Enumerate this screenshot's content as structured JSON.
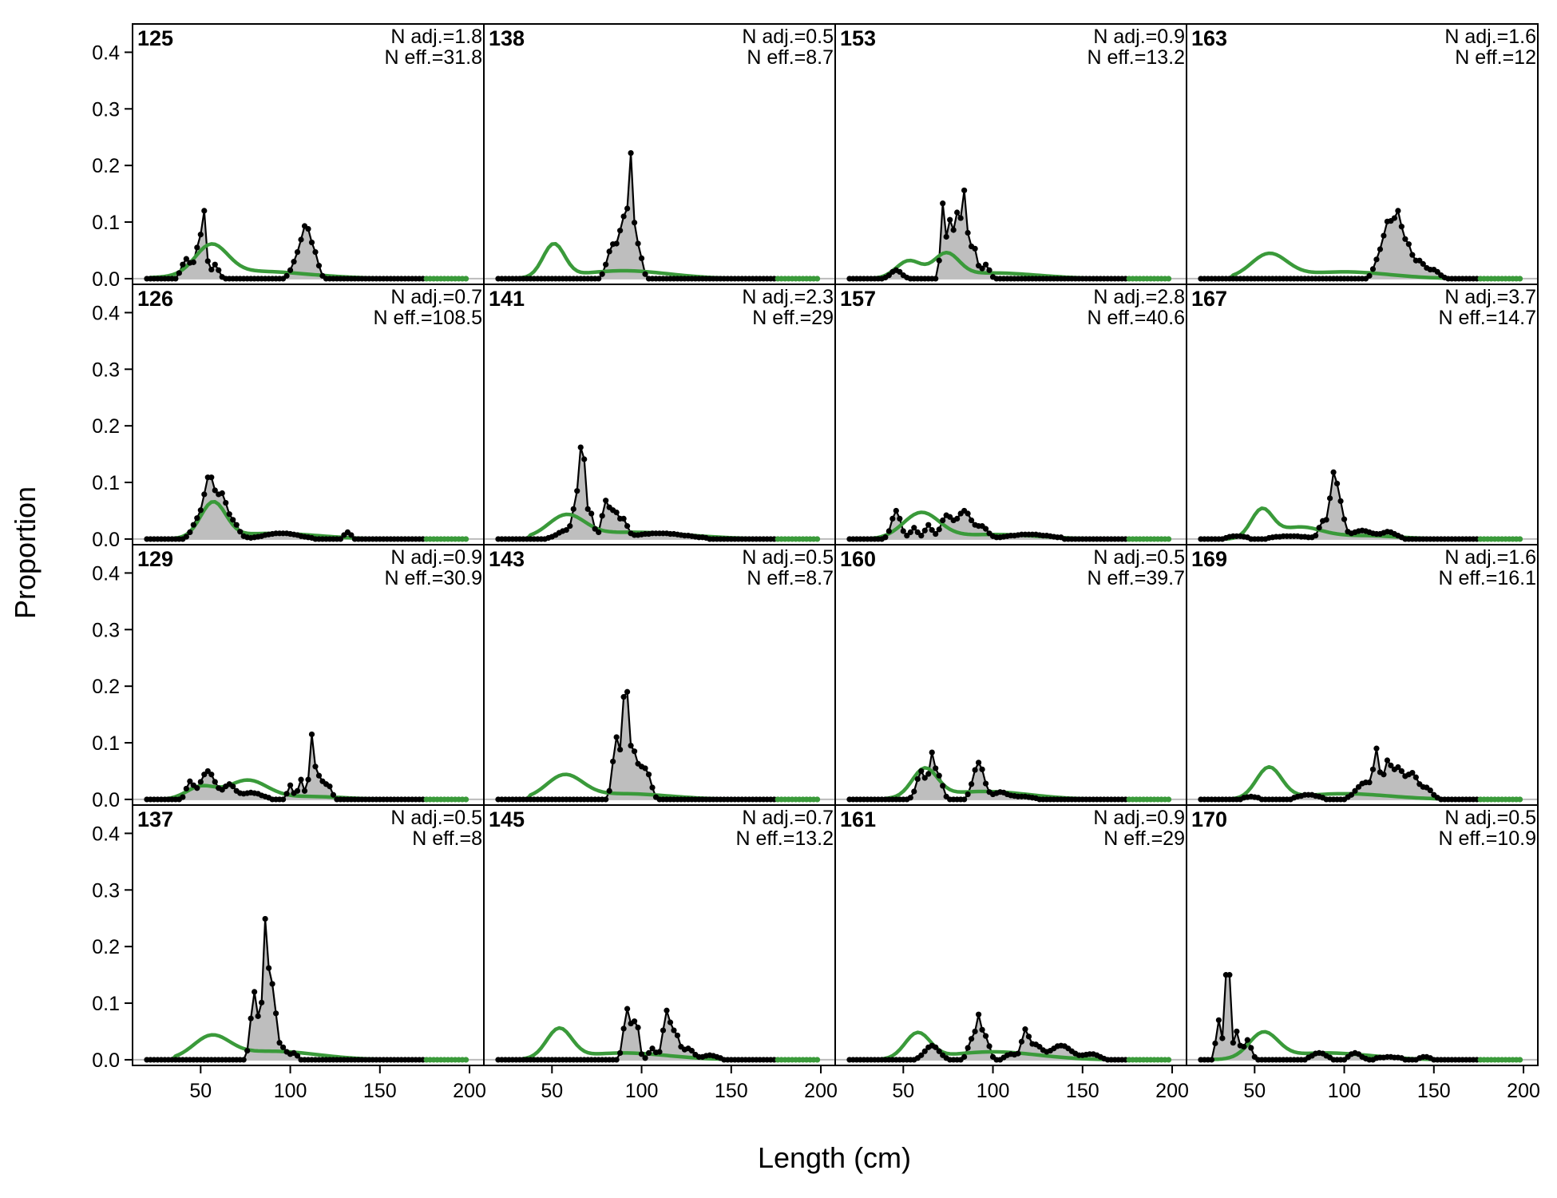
{
  "chart_data": {
    "type": "line",
    "xlabel": "Length (cm)",
    "ylabel": "Proportion",
    "xlim": [
      12,
      208
    ],
    "ylim": [
      -0.01,
      0.45
    ],
    "x_ticks": [
      50,
      100,
      150,
      200
    ],
    "y_ticks": [
      0.0,
      0.1,
      0.2,
      0.3,
      0.4
    ],
    "y_tick_labels": [
      "0.0",
      "0.1",
      "0.2",
      "0.3",
      "0.4"
    ],
    "grid": false,
    "colors": {
      "observed_fill": "#bebebe",
      "observed_line": "#000000",
      "expected_line": "#3a9a3a",
      "zero_line": "#bbbbbb",
      "frame": "#000000"
    },
    "bin_start": 20,
    "bin_end": 198,
    "bin_width": 2,
    "panels": [
      {
        "label": "125",
        "n_adj": "N adj.=1.8",
        "n_eff": "N eff.=31.8",
        "obs_peaks": [
          [
            42,
            0.035,
            2.5
          ],
          [
            49,
            0.06,
            2
          ],
          [
            52,
            0.1,
            1.2
          ],
          [
            58,
            0.025,
            2
          ],
          [
            104,
            0.035,
            3
          ],
          [
            109,
            0.085,
            2.5
          ],
          [
            114,
            0.035,
            2
          ]
        ],
        "exp_peaks": [
          [
            56,
            0.052,
            9
          ],
          [
            80,
            0.013,
            30
          ]
        ]
      },
      {
        "label": "126",
        "n_adj": "N adj.=0.7",
        "n_eff": "N eff.=108.5",
        "obs_peaks": [
          [
            48,
            0.03,
            3
          ],
          [
            55,
            0.11,
            3
          ],
          [
            62,
            0.07,
            2.5
          ],
          [
            68,
            0.03,
            3
          ],
          [
            95,
            0.01,
            10
          ],
          [
            132,
            0.012,
            2
          ]
        ],
        "exp_peaks": [
          [
            57,
            0.062,
            7
          ],
          [
            90,
            0.01,
            25
          ]
        ]
      },
      {
        "label": "129",
        "n_adj": "N adj.=0.9",
        "n_eff": "N eff.=30.9",
        "obs_peaks": [
          [
            44,
            0.03,
            2
          ],
          [
            54,
            0.05,
            4
          ],
          [
            66,
            0.025,
            3
          ],
          [
            78,
            0.012,
            6
          ],
          [
            100,
            0.025,
            1.5
          ],
          [
            106,
            0.035,
            1.5
          ],
          [
            112,
            0.11,
            1.3
          ],
          [
            116,
            0.04,
            2
          ],
          [
            121,
            0.025,
            2
          ]
        ],
        "exp_peaks": [
          [
            50,
            0.022,
            8
          ],
          [
            76,
            0.033,
            11
          ],
          [
            110,
            0.005,
            20
          ]
        ]
      },
      {
        "label": "137",
        "n_adj": "N adj.=0.5",
        "n_eff": "N eff.=8",
        "obs_peaks": [
          [
            80,
            0.12,
            2
          ],
          [
            86,
            0.23,
            1.4
          ],
          [
            90,
            0.13,
            2
          ],
          [
            96,
            0.02,
            2
          ],
          [
            102,
            0.012,
            2
          ]
        ],
        "exp_peaks": [
          [
            56,
            0.038,
            10
          ],
          [
            90,
            0.015,
            25
          ]
        ]
      },
      {
        "label": "138",
        "n_adj": "N adj.=0.5",
        "n_eff": "N eff.=8.7",
        "obs_peaks": [
          [
            84,
            0.06,
            3
          ],
          [
            90,
            0.1,
            2
          ],
          [
            94,
            0.2,
            1.3
          ],
          [
            98,
            0.06,
            2
          ]
        ],
        "exp_peaks": [
          [
            51,
            0.058,
            6
          ],
          [
            90,
            0.014,
            25
          ]
        ]
      },
      {
        "label": "141",
        "n_adj": "N adj.=2.3",
        "n_eff": "N eff.=29",
        "obs_peaks": [
          [
            58,
            0.015,
            5
          ],
          [
            64,
            0.07,
            2
          ],
          [
            67,
            0.16,
            1.2
          ],
          [
            71,
            0.05,
            2
          ],
          [
            80,
            0.065,
            2
          ],
          [
            85,
            0.045,
            2
          ],
          [
            90,
            0.03,
            2
          ],
          [
            110,
            0.01,
            15
          ]
        ],
        "exp_peaks": [
          [
            58,
            0.038,
            10
          ],
          [
            95,
            0.012,
            30
          ]
        ]
      },
      {
        "label": "143",
        "n_adj": "N adj.=0.5",
        "n_eff": "N eff.=8.7",
        "obs_peaks": [
          [
            86,
            0.11,
            2
          ],
          [
            91,
            0.21,
            1.4
          ],
          [
            95,
            0.08,
            2
          ],
          [
            100,
            0.05,
            2.5
          ],
          [
            104,
            0.03,
            2
          ]
        ],
        "exp_peaks": [
          [
            57,
            0.04,
            10
          ],
          [
            90,
            0.01,
            25
          ]
        ]
      },
      {
        "label": "145",
        "n_adj": "N adj.=0.7",
        "n_eff": "N eff.=13.2",
        "obs_peaks": [
          [
            92,
            0.09,
            2
          ],
          [
            97,
            0.07,
            1.5
          ],
          [
            106,
            0.02,
            2
          ],
          [
            114,
            0.085,
            2
          ],
          [
            119,
            0.045,
            2
          ],
          [
            126,
            0.02,
            3
          ],
          [
            138,
            0.008,
            4
          ]
        ],
        "exp_peaks": [
          [
            54,
            0.052,
            7
          ],
          [
            90,
            0.012,
            25
          ]
        ]
      },
      {
        "label": "153",
        "n_adj": "N adj.=0.9",
        "n_eff": "N eff.=13.2",
        "obs_peaks": [
          [
            46,
            0.015,
            3
          ],
          [
            72,
            0.13,
            1.2
          ],
          [
            76,
            0.1,
            1.5
          ],
          [
            80,
            0.11,
            1.5
          ],
          [
            84,
            0.15,
            1.5
          ],
          [
            89,
            0.06,
            2
          ],
          [
            96,
            0.025,
            2
          ]
        ],
        "exp_peaks": [
          [
            53,
            0.03,
            7
          ],
          [
            74,
            0.04,
            7
          ],
          [
            100,
            0.01,
            25
          ]
        ]
      },
      {
        "label": "157",
        "n_adj": "N adj.=2.8",
        "n_eff": "N eff.=40.6",
        "obs_peaks": [
          [
            46,
            0.05,
            2.5
          ],
          [
            56,
            0.02,
            2
          ],
          [
            64,
            0.025,
            2
          ],
          [
            74,
            0.04,
            3
          ],
          [
            84,
            0.05,
            4
          ],
          [
            94,
            0.02,
            3
          ],
          [
            120,
            0.008,
            12
          ]
        ],
        "exp_peaks": [
          [
            60,
            0.045,
            10
          ],
          [
            100,
            0.008,
            25
          ]
        ]
      },
      {
        "label": "160",
        "n_adj": "N adj.=0.5",
        "n_eff": "N eff.=39.7",
        "obs_peaks": [
          [
            60,
            0.05,
            2.5
          ],
          [
            66,
            0.075,
            1.5
          ],
          [
            70,
            0.04,
            2
          ],
          [
            92,
            0.065,
            3
          ],
          [
            104,
            0.012,
            4
          ],
          [
            116,
            0.005,
            6
          ]
        ],
        "exp_peaks": [
          [
            62,
            0.05,
            7
          ],
          [
            95,
            0.014,
            25
          ]
        ]
      },
      {
        "label": "161",
        "n_adj": "N adj.=0.9",
        "n_eff": "N eff.=29",
        "obs_peaks": [
          [
            66,
            0.025,
            4
          ],
          [
            88,
            0.035,
            2
          ],
          [
            92,
            0.07,
            1.5
          ],
          [
            96,
            0.04,
            2
          ],
          [
            110,
            0.01,
            3
          ],
          [
            118,
            0.05,
            2
          ],
          [
            124,
            0.025,
            3
          ],
          [
            138,
            0.025,
            6
          ],
          [
            155,
            0.01,
            4
          ]
        ],
        "exp_peaks": [
          [
            58,
            0.045,
            7
          ],
          [
            100,
            0.014,
            25
          ]
        ]
      },
      {
        "label": "163",
        "n_adj": "N adj.=1.6",
        "n_eff": "N eff.=12",
        "obs_peaks": [
          [
            120,
            0.04,
            3
          ],
          [
            125,
            0.09,
            2.5
          ],
          [
            130,
            0.1,
            2
          ],
          [
            135,
            0.06,
            2.5
          ],
          [
            142,
            0.03,
            3
          ],
          [
            150,
            0.015,
            3
          ]
        ],
        "exp_peaks": [
          [
            58,
            0.042,
            10
          ],
          [
            100,
            0.012,
            25
          ]
        ]
      },
      {
        "label": "167",
        "n_adj": "N adj.=3.7",
        "n_eff": "N eff.=14.7",
        "obs_peaks": [
          [
            40,
            0.005,
            5
          ],
          [
            70,
            0.005,
            10
          ],
          [
            88,
            0.03,
            2
          ],
          [
            94,
            0.11,
            2
          ],
          [
            98,
            0.05,
            2
          ],
          [
            110,
            0.015,
            6
          ],
          [
            125,
            0.012,
            4
          ]
        ],
        "exp_peaks": [
          [
            54,
            0.05,
            6
          ],
          [
            75,
            0.02,
            12
          ],
          [
            110,
            0.006,
            20
          ]
        ]
      },
      {
        "label": "169",
        "n_adj": "N adj.=1.6",
        "n_eff": "N eff.=16.1",
        "obs_peaks": [
          [
            48,
            0.005,
            4
          ],
          [
            80,
            0.008,
            6
          ],
          [
            112,
            0.03,
            5
          ],
          [
            118,
            0.075,
            1.5
          ],
          [
            124,
            0.06,
            2
          ],
          [
            130,
            0.055,
            3
          ],
          [
            138,
            0.045,
            3
          ],
          [
            146,
            0.02,
            3
          ]
        ],
        "exp_peaks": [
          [
            58,
            0.055,
            7
          ],
          [
            100,
            0.01,
            25
          ]
        ]
      },
      {
        "label": "170",
        "n_adj": "N adj.=0.5",
        "n_eff": "N eff.=10.9",
        "obs_peaks": [
          [
            30,
            0.07,
            1.5
          ],
          [
            35,
            0.21,
            1.2
          ],
          [
            40,
            0.05,
            1.5
          ],
          [
            46,
            0.035,
            2
          ],
          [
            86,
            0.012,
            4
          ],
          [
            106,
            0.012,
            3
          ],
          [
            125,
            0.005,
            6
          ],
          [
            145,
            0.005,
            3
          ]
        ],
        "exp_peaks": [
          [
            55,
            0.045,
            8
          ],
          [
            90,
            0.012,
            25
          ]
        ]
      }
    ]
  }
}
